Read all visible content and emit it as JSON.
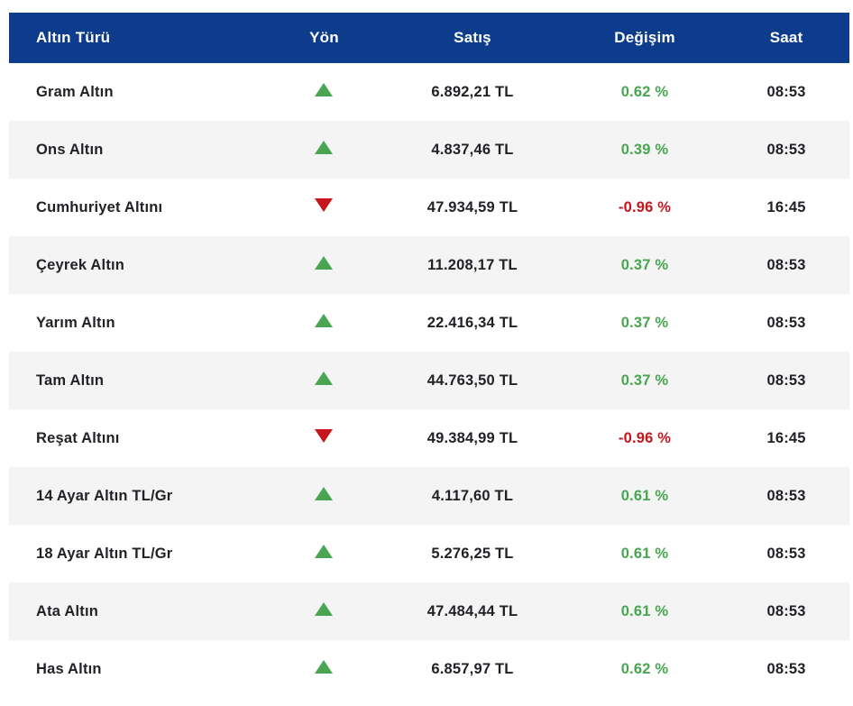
{
  "table": {
    "columns": [
      {
        "key": "name",
        "label": "Altın Türü"
      },
      {
        "key": "direction",
        "label": "Yön"
      },
      {
        "key": "price",
        "label": "Satış"
      },
      {
        "key": "change",
        "label": "Değişim"
      },
      {
        "key": "time",
        "label": "Saat"
      }
    ],
    "icons": {
      "up": "up-triangle-icon",
      "down": "down-triangle-icon"
    },
    "colors": {
      "header_bg": "#0d3c8c",
      "header_text": "#ffffff",
      "row_alt_bg": "#f4f4f5",
      "row_bg": "#ffffff",
      "text": "#1f2125",
      "up": "#47a64f",
      "down": "#c4161c"
    },
    "rows": [
      {
        "name": "Gram Altın",
        "direction": "up",
        "price": "6.892,21 TL",
        "change": "0.62 %",
        "time": "08:53"
      },
      {
        "name": "Ons Altın",
        "direction": "up",
        "price": "4.837,46 TL",
        "change": "0.39 %",
        "time": "08:53"
      },
      {
        "name": "Cumhuriyet Altını",
        "direction": "down",
        "price": "47.934,59 TL",
        "change": "-0.96 %",
        "time": "16:45"
      },
      {
        "name": "Çeyrek Altın",
        "direction": "up",
        "price": "11.208,17 TL",
        "change": "0.37 %",
        "time": "08:53"
      },
      {
        "name": "Yarım Altın",
        "direction": "up",
        "price": "22.416,34 TL",
        "change": "0.37 %",
        "time": "08:53"
      },
      {
        "name": "Tam Altın",
        "direction": "up",
        "price": "44.763,50 TL",
        "change": "0.37 %",
        "time": "08:53"
      },
      {
        "name": "Reşat Altını",
        "direction": "down",
        "price": "49.384,99 TL",
        "change": "-0.96 %",
        "time": "16:45"
      },
      {
        "name": "14 Ayar Altın TL/Gr",
        "direction": "up",
        "price": "4.117,60 TL",
        "change": "0.61 %",
        "time": "08:53"
      },
      {
        "name": "18 Ayar Altın TL/Gr",
        "direction": "up",
        "price": "5.276,25 TL",
        "change": "0.61 %",
        "time": "08:53"
      },
      {
        "name": "Ata Altın",
        "direction": "up",
        "price": "47.484,44 TL",
        "change": "0.61 %",
        "time": "08:53"
      },
      {
        "name": "Has Altın",
        "direction": "up",
        "price": "6.857,97 TL",
        "change": "0.62 %",
        "time": "08:53"
      }
    ]
  }
}
